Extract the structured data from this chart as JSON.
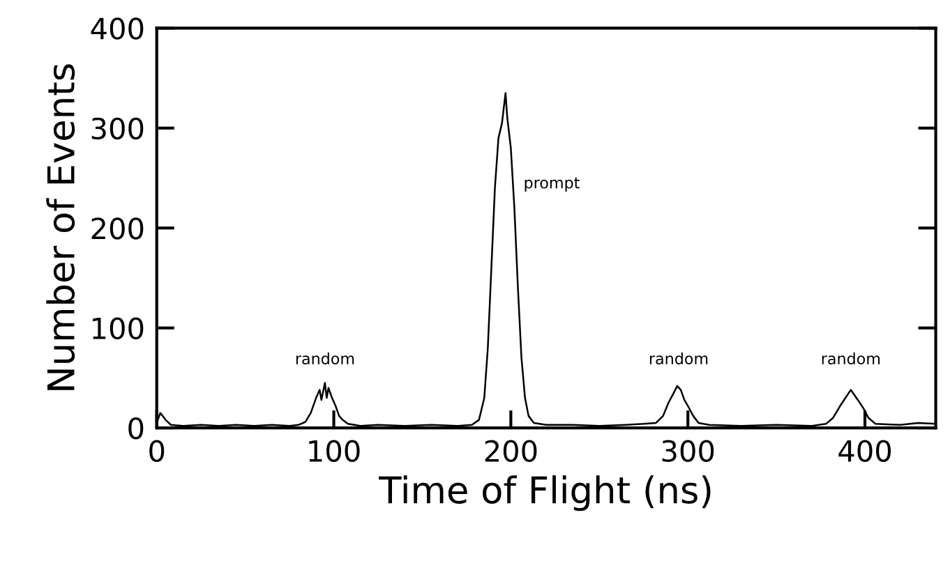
{
  "chart_data": {
    "type": "line",
    "xlabel": "Time of Flight (ns)",
    "ylabel": "Number of Events",
    "xlim": [
      0,
      440
    ],
    "ylim": [
      0,
      400
    ],
    "xticks": [
      0,
      100,
      200,
      300,
      400
    ],
    "yticks": [
      0,
      100,
      200,
      300,
      400
    ],
    "grid": false,
    "marker": "none",
    "line_style": "solid",
    "series": [
      {
        "color": "#000000",
        "x": [
          0,
          2,
          5,
          8,
          15,
          25,
          35,
          45,
          55,
          65,
          75,
          80,
          84,
          87,
          90,
          92,
          93,
          95,
          96,
          97,
          99,
          101,
          103,
          105,
          108,
          115,
          125,
          140,
          155,
          170,
          178,
          182,
          185,
          187,
          189,
          191,
          193,
          195,
          196,
          197,
          198,
          200,
          202,
          204,
          206,
          208,
          210,
          213,
          220,
          235,
          250,
          265,
          275,
          282,
          286,
          289,
          292,
          294,
          296,
          298,
          300,
          303,
          306,
          312,
          330,
          350,
          370,
          378,
          382,
          386,
          389,
          392,
          394,
          396,
          399,
          402,
          406,
          420,
          430,
          440
        ],
        "values": [
          5,
          15,
          8,
          3,
          2,
          3,
          2,
          3,
          2,
          3,
          2,
          3,
          6,
          15,
          30,
          38,
          28,
          45,
          30,
          40,
          30,
          22,
          12,
          8,
          4,
          2,
          3,
          2,
          3,
          2,
          3,
          8,
          30,
          80,
          160,
          240,
          290,
          305,
          320,
          335,
          310,
          280,
          220,
          140,
          70,
          30,
          12,
          5,
          3,
          3,
          2,
          3,
          4,
          5,
          12,
          25,
          35,
          42,
          38,
          28,
          22,
          12,
          5,
          3,
          2,
          3,
          2,
          4,
          10,
          22,
          30,
          38,
          33,
          28,
          20,
          10,
          4,
          3,
          5,
          4
        ]
      }
    ],
    "annotations": [
      "random",
      "prompt",
      "random",
      "random"
    ]
  }
}
